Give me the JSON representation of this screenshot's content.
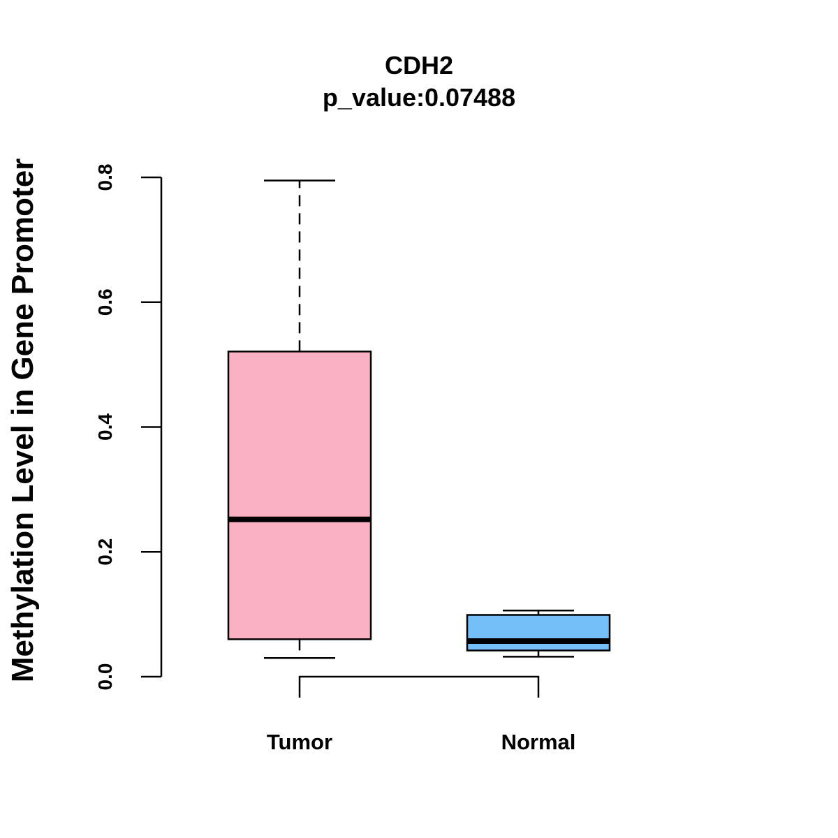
{
  "chart_data": {
    "type": "boxplot",
    "title": "CDH2",
    "subtitle": "p_value:0.07488",
    "xlabel": "",
    "ylabel": "Methylation Level in Gene Promoter",
    "ylim": [
      0,
      0.8
    ],
    "yticks": [
      0,
      0.2,
      0.4,
      0.6,
      0.8
    ],
    "ytick_labels": [
      "0.0",
      "0.2",
      "0.4",
      "0.6",
      "0.8"
    ],
    "categories": [
      "Tumor",
      "Normal"
    ],
    "boxes": [
      {
        "name": "Tumor",
        "whisker_low": 0.03,
        "q1": 0.06,
        "median": 0.252,
        "q3": 0.521,
        "whisker_high": 0.795,
        "color": "#FBB1C4"
      },
      {
        "name": "Normal",
        "whisker_low": 0.032,
        "q1": 0.042,
        "median": 0.057,
        "q3": 0.099,
        "whisker_high": 0.106,
        "color": "#75BFF8"
      }
    ],
    "comparison_bracket": [
      "Tumor",
      "Normal"
    ]
  }
}
